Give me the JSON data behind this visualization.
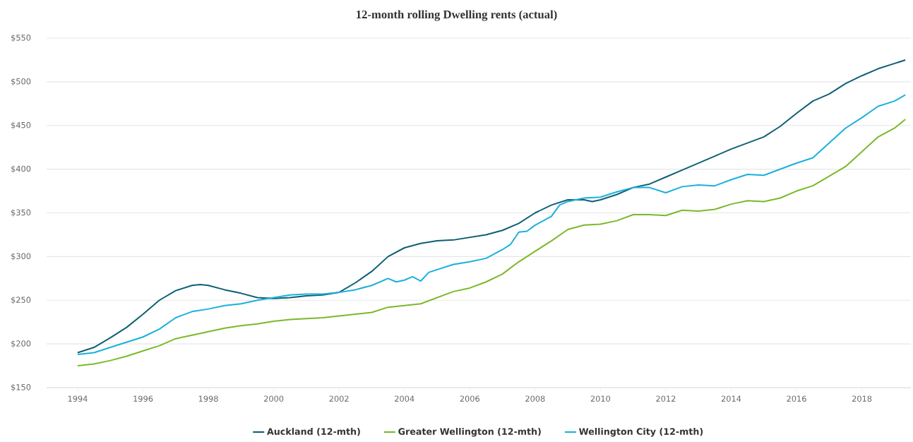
{
  "chart_data": {
    "type": "line",
    "title": "12-month rolling Dwelling rents (actual)",
    "xlim": [
      1993.05,
      2019.5
    ],
    "ylim": [
      150,
      550
    ],
    "xticks": [
      1994,
      1996,
      1998,
      2000,
      2002,
      2004,
      2006,
      2008,
      2010,
      2012,
      2014,
      2016,
      2018
    ],
    "yticks": [
      {
        "value": 150,
        "label": "$150"
      },
      {
        "value": 200,
        "label": "$200"
      },
      {
        "value": 250,
        "label": "$250"
      },
      {
        "value": 300,
        "label": "$300"
      },
      {
        "value": 350,
        "label": "$350"
      },
      {
        "value": 400,
        "label": "$400"
      },
      {
        "value": 450,
        "label": "$450"
      },
      {
        "value": 500,
        "label": "$500"
      },
      {
        "value": 550,
        "label": "$550"
      }
    ],
    "grid": "y",
    "legend": "bottom",
    "series": [
      {
        "name": "Auckland (12-mth)",
        "color": "#0e5f73",
        "x": [
          1994,
          1994.5,
          1995,
          1995.5,
          1996,
          1996.5,
          1997,
          1997.5,
          1997.75,
          1998,
          1998.5,
          1999,
          1999.5,
          2000,
          2000.5,
          2001,
          2001.5,
          2002,
          2002.5,
          2003,
          2003.5,
          2004,
          2004.5,
          2005,
          2005.5,
          2006,
          2006.5,
          2007,
          2007.5,
          2008,
          2008.5,
          2009,
          2009.5,
          2009.75,
          2010,
          2010.5,
          2011,
          2011.5,
          2012,
          2012.5,
          2013,
          2013.5,
          2014,
          2014.5,
          2015,
          2015.5,
          2016,
          2016.5,
          2017,
          2017.5,
          2018,
          2018.5,
          2019,
          2019.33
        ],
        "values": [
          190,
          196,
          207,
          219,
          234,
          250,
          261,
          267,
          268,
          267,
          262,
          258,
          253,
          252,
          253,
          255,
          256,
          259,
          270,
          283,
          300,
          310,
          315,
          318,
          319,
          322,
          325,
          330,
          338,
          350,
          359,
          365,
          365,
          363,
          365,
          371,
          379,
          383,
          391,
          399,
          407,
          415,
          423,
          430,
          437,
          449,
          464,
          478,
          486,
          498,
          507,
          515,
          521,
          525
        ]
      },
      {
        "name": "Greater Wellington (12-mth)",
        "color": "#7ab929",
        "x": [
          1994,
          1994.5,
          1995,
          1995.5,
          1996,
          1996.5,
          1997,
          1997.5,
          1998,
          1998.5,
          1999,
          1999.5,
          2000,
          2000.5,
          2001,
          2001.5,
          2002,
          2002.5,
          2003,
          2003.5,
          2004,
          2004.5,
          2005,
          2005.5,
          2006,
          2006.5,
          2007,
          2007.5,
          2008,
          2008.5,
          2009,
          2009.5,
          2010,
          2010.5,
          2011,
          2011.5,
          2012,
          2012.5,
          2013,
          2013.5,
          2014,
          2014.5,
          2015,
          2015.5,
          2016,
          2016.5,
          2017,
          2017.5,
          2018,
          2018.5,
          2019,
          2019.33
        ],
        "values": [
          175,
          177,
          181,
          186,
          192,
          198,
          206,
          210,
          214,
          218,
          221,
          223,
          226,
          228,
          229,
          230,
          232,
          234,
          236,
          242,
          244,
          246,
          253,
          260,
          264,
          271,
          280,
          294,
          306,
          318,
          331,
          336,
          337,
          341,
          348,
          348,
          347,
          353,
          352,
          354,
          360,
          364,
          363,
          367,
          375,
          381,
          392,
          403,
          420,
          437,
          447,
          457
        ]
      },
      {
        "name": "Wellington City (12-mth)",
        "color": "#1ab0dc",
        "x": [
          1994,
          1994.5,
          1995,
          1995.5,
          1996,
          1996.5,
          1997,
          1997.5,
          1998,
          1998.5,
          1999,
          1999.5,
          2000,
          2000.5,
          2001,
          2001.5,
          2002,
          2002.5,
          2003,
          2003.5,
          2003.75,
          2004,
          2004.25,
          2004.5,
          2004.75,
          2005,
          2005.5,
          2006,
          2006.5,
          2007,
          2007.25,
          2007.5,
          2007.75,
          2008,
          2008.5,
          2008.75,
          2009,
          2009.5,
          2010,
          2010.5,
          2011,
          2011.5,
          2012,
          2012.5,
          2013,
          2013.5,
          2014,
          2014.5,
          2015,
          2015.5,
          2016,
          2016.5,
          2017,
          2017.5,
          2018,
          2018.5,
          2019,
          2019.33
        ],
        "values": [
          188,
          190,
          196,
          202,
          208,
          217,
          230,
          237,
          240,
          244,
          246,
          250,
          253,
          256,
          257,
          257,
          259,
          262,
          267,
          275,
          271,
          273,
          277,
          272,
          282,
          285,
          291,
          294,
          298,
          308,
          314,
          328,
          329,
          336,
          346,
          359,
          363,
          367,
          368,
          374,
          379,
          379,
          373,
          380,
          382,
          381,
          388,
          394,
          393,
          400,
          407,
          413,
          430,
          447,
          459,
          472,
          478,
          485
        ]
      }
    ]
  }
}
